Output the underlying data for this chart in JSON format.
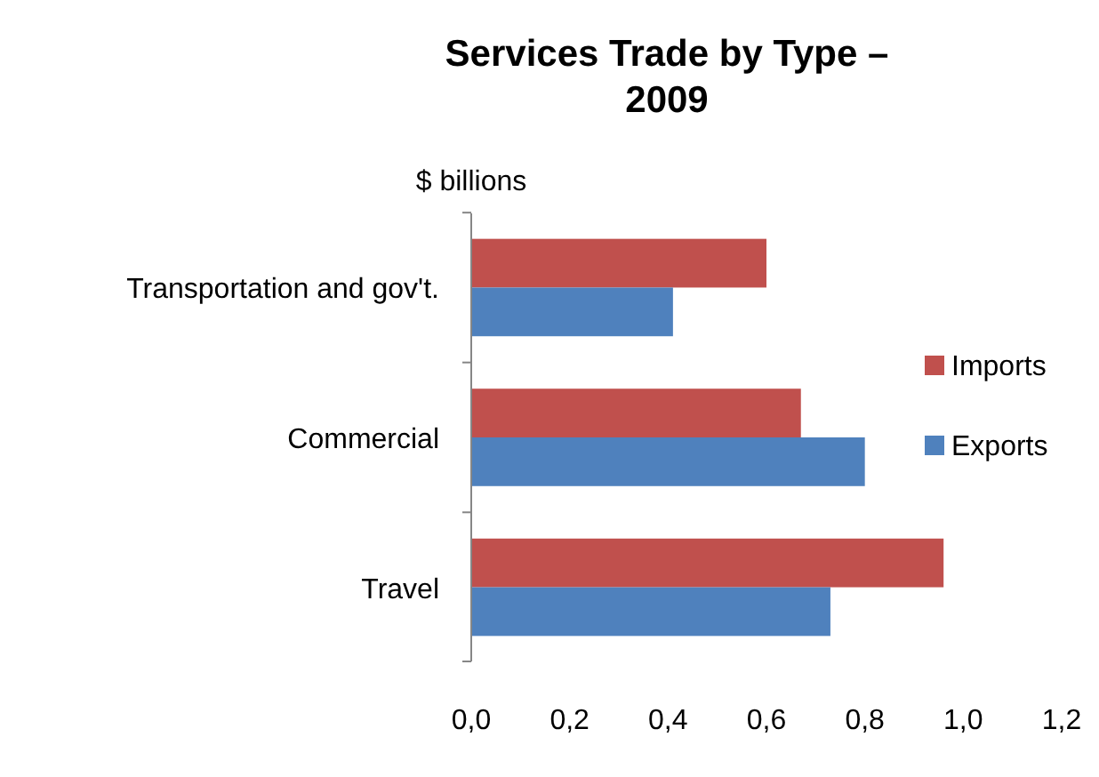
{
  "chart_data": {
    "type": "bar",
    "orientation": "horizontal",
    "title": "Services Trade by Type –\n2009",
    "xlabel": "$ billions",
    "categories": [
      "Transportation and gov't.",
      "Commercial",
      "Travel"
    ],
    "series": [
      {
        "name": "Imports",
        "color": "#c0504d",
        "values": [
          0.6,
          0.67,
          0.96
        ]
      },
      {
        "name": "Exports",
        "color": "#4f81bd",
        "values": [
          0.41,
          0.8,
          0.73
        ]
      }
    ],
    "xlim": [
      0,
      1.2
    ],
    "xticks": [
      {
        "value": 0,
        "label": "0,0"
      },
      {
        "value": 0.2,
        "label": "0,2"
      },
      {
        "value": 0.4,
        "label": "0,4"
      },
      {
        "value": 0.6,
        "label": "0,6"
      },
      {
        "value": 0.8,
        "label": "0,8"
      },
      {
        "value": 1,
        "label": "1,0"
      },
      {
        "value": 1.2,
        "label": "1,2"
      }
    ],
    "grid": false,
    "legend": "right"
  }
}
